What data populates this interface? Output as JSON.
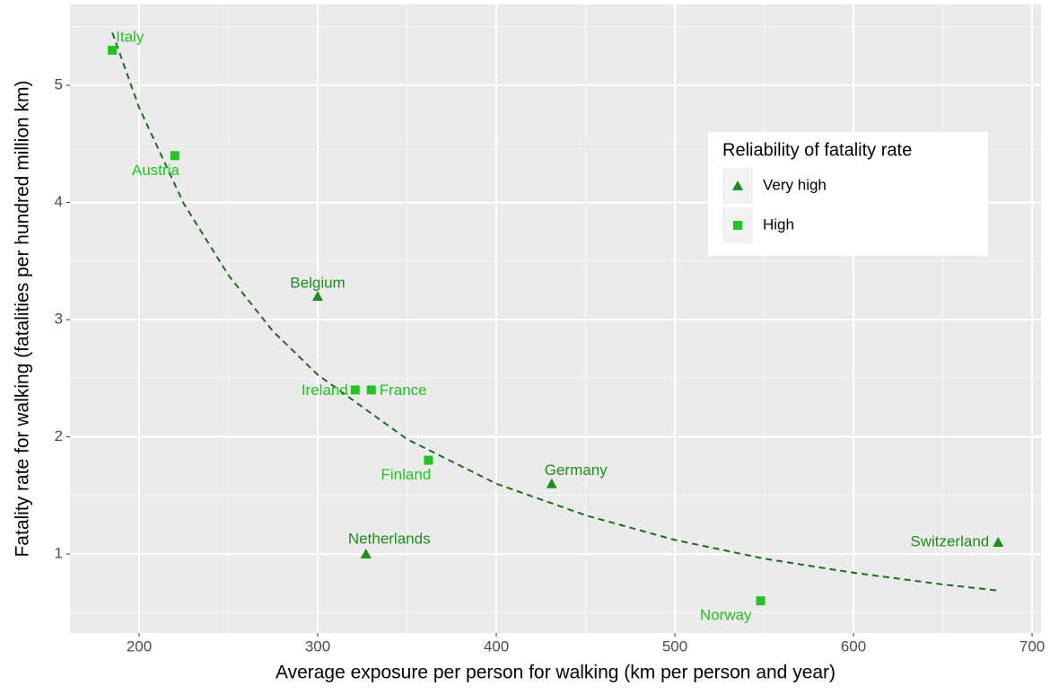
{
  "chart_data": {
    "type": "scatter",
    "x_label": "Average exposure per person for walking (km per person and year)",
    "y_label": "Fatality rate for walking (fatalities per hundred million km)",
    "xlim": [
      161.3,
      705
    ],
    "ylim": [
      0.326,
      5.69
    ],
    "xticks": [
      200,
      300,
      400,
      500,
      600,
      700
    ],
    "yticks": [
      1,
      2,
      3,
      4,
      5
    ],
    "grid": true,
    "legend_title": "Reliability of fatality rate",
    "legend_position": "top-right",
    "series": [
      {
        "name": "Very high",
        "color": "#1a8f1a",
        "marker": "triangle",
        "x": [
          300,
          431,
          327,
          681
        ],
        "values": [
          3.2,
          1.6,
          1.0,
          1.1
        ],
        "labels": [
          "Belgium",
          "Germany",
          "Netherlands",
          "Switzerland"
        ]
      },
      {
        "name": "High",
        "color": "#21c421",
        "marker": "square",
        "x": [
          185,
          220,
          321,
          330,
          362,
          548
        ],
        "values": [
          5.3,
          4.4,
          2.4,
          2.4,
          1.8,
          0.6
        ],
        "labels": [
          "Italy",
          "Austria",
          "Ireland",
          "France",
          "Finland",
          "Norway"
        ]
      }
    ],
    "trend": {
      "color": "#1f6b1f",
      "x": [
        185,
        200,
        225,
        250,
        275,
        300,
        350,
        400,
        450,
        500,
        550,
        600,
        650,
        680
      ],
      "values": [
        5.45,
        4.81,
        3.99,
        3.38,
        2.9,
        2.53,
        1.98,
        1.6,
        1.33,
        1.12,
        0.96,
        0.84,
        0.74,
        0.69
      ]
    }
  }
}
